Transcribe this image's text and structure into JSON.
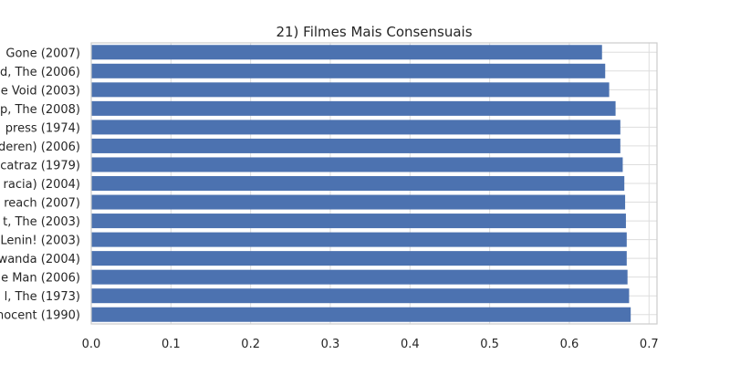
{
  "chart_data": {
    "type": "bar",
    "orientation": "horizontal",
    "title": "21) Filmes Mais Consensuais",
    "xlabel": "",
    "ylabel": "",
    "xlim": [
      0.0,
      0.71
    ],
    "xticks": [
      "0.0",
      "0.1",
      "0.2",
      "0.3",
      "0.4",
      "0.5",
      "0.6",
      "0.7"
    ],
    "grid": true,
    "bar_color": "#4c72b0",
    "categories": [
      "Gone (2007)",
      "d, The (2006)",
      "e Void (2003)",
      "p, The (2008)",
      "press (1974)",
      "deren) (2006)",
      "catraz (1979)",
      "racia) (2004)",
      "reach (2007)",
      "t, The (2003)",
      "Lenin! (2003)",
      "wanda (2004)",
      "e Man (2006)",
      "l, The (1973)",
      "nocent (1990)"
    ],
    "values": [
      0.641,
      0.645,
      0.65,
      0.658,
      0.664,
      0.664,
      0.667,
      0.669,
      0.67,
      0.671,
      0.672,
      0.672,
      0.673,
      0.675,
      0.677
    ]
  }
}
